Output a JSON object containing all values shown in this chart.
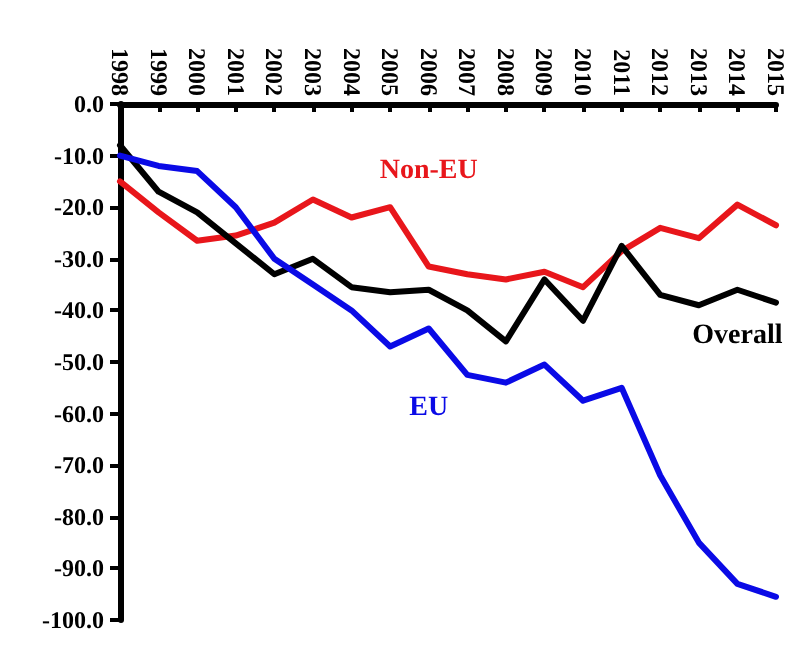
{
  "chart_data": {
    "type": "line",
    "categories": [
      "1998",
      "1999",
      "2000",
      "2001",
      "2002",
      "2003",
      "2004",
      "2005",
      "2006",
      "2007",
      "2008",
      "2009",
      "2010",
      "2011",
      "2012",
      "2013",
      "2014",
      "2015"
    ],
    "series": [
      {
        "name": "Non-EU",
        "color": "#e8161b",
        "values": [
          -15,
          -21,
          -26.5,
          -25.5,
          -23,
          -18.5,
          -22,
          -20,
          -31.5,
          -33,
          -34,
          -32.5,
          -35.5,
          -28.5,
          -24,
          -26,
          -19.5,
          -23.5
        ]
      },
      {
        "name": "Overall",
        "color": "#000000",
        "values": [
          -8,
          -17,
          -21,
          -27,
          -33,
          -30,
          -35.5,
          -36.5,
          -36,
          -40,
          -46,
          -34,
          -42,
          -27.5,
          -37,
          -39,
          -36,
          -38.5
        ]
      },
      {
        "name": "EU",
        "color": "#0a0ae6",
        "values": [
          -10,
          -12,
          -13,
          -20,
          -30,
          -35,
          -40,
          -47,
          -43.5,
          -52.5,
          -54,
          -50.5,
          -57.5,
          -55,
          -72,
          -85,
          -93,
          -95.5
        ]
      }
    ],
    "ylim": [
      -100,
      0
    ],
    "yticks": [
      {
        "value": 0,
        "label": "0.0"
      },
      {
        "value": -10,
        "label": "-10.0"
      },
      {
        "value": -20,
        "label": "-20.0"
      },
      {
        "value": -30,
        "label": "-30.0"
      },
      {
        "value": -40,
        "label": "-40.0"
      },
      {
        "value": -50,
        "label": "-50.0"
      },
      {
        "value": -60,
        "label": "-60.0"
      },
      {
        "value": -70,
        "label": "-70.0"
      },
      {
        "value": -80,
        "label": "-80.0"
      },
      {
        "value": -90,
        "label": "-90.0"
      },
      {
        "value": -100,
        "label": "-100.0"
      }
    ],
    "grid": false,
    "legend": false,
    "marker": "none",
    "line_style": "solid"
  }
}
